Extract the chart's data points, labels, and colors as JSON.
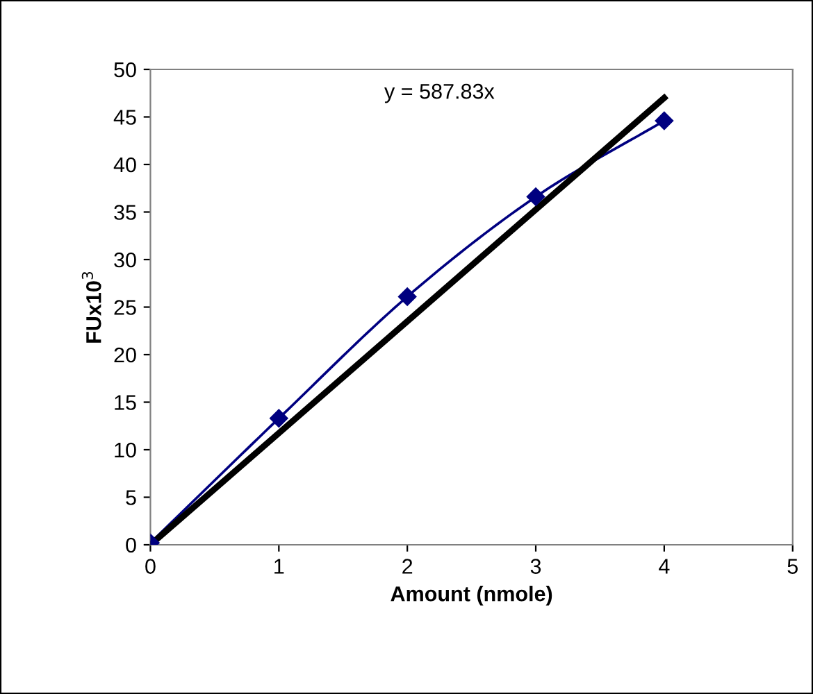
{
  "chart_data": {
    "type": "line",
    "xlabel": "Amount (nmole)",
    "ylabel": "FUx10$^{3}$",
    "x": [
      0,
      1,
      2,
      3,
      4
    ],
    "series": [
      {
        "color": "#000080",
        "values": [
          0.2,
          13.3,
          26.1,
          36.6,
          44.6
        ],
        "marker": "diamond"
      },
      {
        "color": "#000000",
        "x": [
          0,
          4
        ],
        "values": [
          0,
          47
        ],
        "marker": "none"
      }
    ],
    "annotations": [
      "y = 587.83x"
    ],
    "xlim": [
      0,
      5
    ],
    "xticks": [
      0,
      1,
      2,
      3,
      4,
      5
    ],
    "ylim": [
      0,
      50
    ],
    "yticks": [
      0,
      5,
      10,
      15,
      20,
      25,
      30,
      35,
      40,
      45,
      50
    ],
    "grid": false,
    "legend": false
  }
}
